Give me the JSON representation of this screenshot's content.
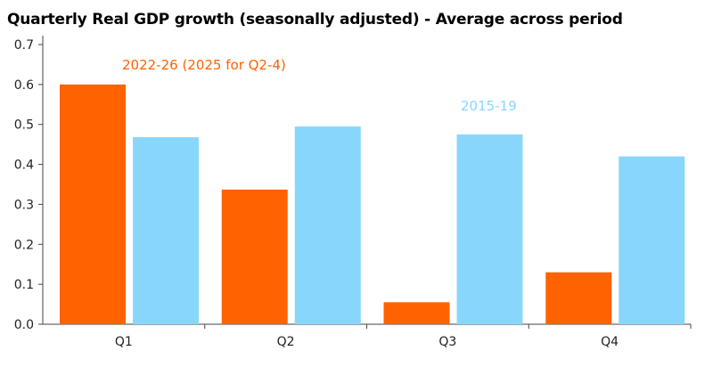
{
  "chart_data": {
    "type": "bar",
    "title": "Quarterly Real GDP growth (seasonally adjusted) - Average across period",
    "categories": [
      "Q1",
      "Q2",
      "Q3",
      "Q4"
    ],
    "series": [
      {
        "name": "2022-26 (2025 for Q2-4)",
        "values": [
          0.6,
          0.337,
          0.055,
          0.13
        ],
        "color": "#ff6200"
      },
      {
        "name": "2015-19",
        "values": [
          0.468,
          0.495,
          0.475,
          0.42
        ],
        "color": "#89d6fd"
      }
    ],
    "ylim": [
      0,
      0.7
    ],
    "yticks": [
      "0.0",
      "0.1",
      "0.2",
      "0.3",
      "0.4",
      "0.5",
      "0.6",
      "0.7"
    ],
    "xlabel": "",
    "ylabel": "",
    "legend": "inline labels above bars",
    "grid": false
  }
}
